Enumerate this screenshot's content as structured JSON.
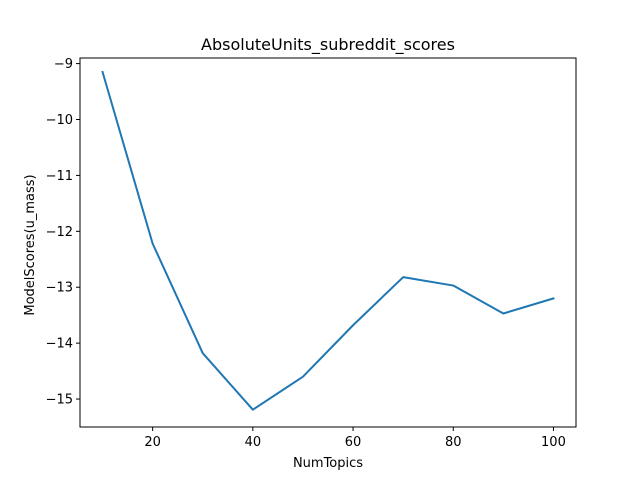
{
  "chart_data": {
    "type": "line",
    "title": "AbsoluteUnits_subreddit_scores",
    "xlabel": "NumTopics",
    "ylabel": "ModelScores(u_mass)",
    "xlim": [
      5.5,
      104.5
    ],
    "ylim": [
      -15.5,
      -8.9
    ],
    "xticks": [
      20,
      40,
      60,
      80,
      100
    ],
    "yticks": [
      -15,
      -14,
      -13,
      -12,
      -11,
      -10,
      -9
    ],
    "ytick_labels": [
      "−15",
      "−14",
      "−13",
      "−12",
      "−11",
      "−10",
      "−9"
    ],
    "grid": false,
    "line_color": "#1f77b4",
    "x": [
      10,
      20,
      30,
      40,
      50,
      60,
      70,
      80,
      90,
      100
    ],
    "y": [
      -9.15,
      -12.22,
      -14.18,
      -15.19,
      -14.6,
      -13.68,
      -12.82,
      -12.97,
      -13.47,
      -13.2
    ]
  }
}
